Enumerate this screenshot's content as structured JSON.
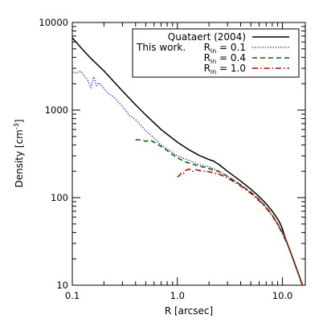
{
  "chart_data": {
    "type": "line",
    "title": "",
    "xlabel": "R [arcsec]",
    "ylabel_main": "Density [cm",
    "ylabel_exp": "-3",
    "ylabel_close": "]",
    "x_scale": "log",
    "y_scale": "log",
    "xlim": [
      0.1,
      16.5
    ],
    "ylim": [
      10,
      10000
    ],
    "x_tick_labels": [
      {
        "value": 0.1,
        "label": "0.1"
      },
      {
        "value": 1.0,
        "label": "1.0"
      },
      {
        "value": 10.0,
        "label": "10.0"
      }
    ],
    "y_tick_labels": [
      {
        "value": 10,
        "label": "10"
      },
      {
        "value": 100,
        "label": "100"
      },
      {
        "value": 1000,
        "label": "1000"
      },
      {
        "value": 10000,
        "label": "10000"
      }
    ],
    "grid": false,
    "legend": {
      "placement": "top-right",
      "group_label": "This work.",
      "entries": [
        {
          "label": "Quataert (2004)",
          "color": "#000000",
          "dash": "solid"
        },
        {
          "label_main": "R",
          "label_sub": "in",
          "label_tail": " = 0.1",
          "color": "#3333cc",
          "dash": "dotted"
        },
        {
          "label_main": "R",
          "label_sub": "in",
          "label_tail": " = 0.4",
          "color": "#006600",
          "dash": "dashed"
        },
        {
          "label_main": "R",
          "label_sub": "in",
          "label_tail": " = 1.0",
          "color": "#cc0000",
          "dash": "dashdot"
        }
      ]
    },
    "series": [
      {
        "key": "quataert",
        "color": "#000000",
        "dash": "solid",
        "x": [
          0.1,
          0.12,
          0.15,
          0.2,
          0.3,
          0.4,
          0.5,
          0.7,
          1.0,
          1.3,
          1.6,
          2.0,
          2.2,
          2.5,
          3.0,
          4.0,
          5.0,
          6.0,
          7.0,
          8.0,
          9.0,
          9.5,
          10.0,
          10.5,
          11.5,
          13.0,
          14.5,
          15.5
        ],
        "y": [
          6700,
          5200,
          3900,
          2800,
          1650,
          1150,
          880,
          600,
          430,
          350,
          305,
          272,
          262,
          238,
          200,
          155,
          125,
          103,
          85,
          70,
          57,
          51,
          44,
          36,
          27,
          18,
          12.5,
          10
        ]
      },
      {
        "key": "rin_0.1",
        "color": "#3333cc",
        "dash": "dotted",
        "x": [
          0.1,
          0.11,
          0.12,
          0.13,
          0.14,
          0.15,
          0.16,
          0.17,
          0.18,
          0.2,
          0.22,
          0.25,
          0.3,
          0.35,
          0.4,
          0.5,
          0.6,
          0.7,
          0.8,
          1.0,
          1.3,
          1.6,
          2.0,
          2.5,
          3.0,
          4.0,
          5.0,
          6.0,
          7.0,
          8.0,
          9.0,
          10.0,
          11.5,
          13.0,
          14.5,
          15.5
        ],
        "y": [
          2700,
          2650,
          2800,
          2450,
          2200,
          1800,
          2400,
          1900,
          2050,
          1750,
          1550,
          1400,
          1100,
          870,
          780,
          580,
          480,
          400,
          360,
          300,
          265,
          240,
          225,
          200,
          175,
          140,
          115,
          95,
          78,
          63,
          50,
          40,
          27,
          18,
          12.5,
          10
        ]
      },
      {
        "key": "rin_0.4",
        "color": "#006600",
        "dash": "dashed",
        "x": [
          0.4,
          0.45,
          0.5,
          0.55,
          0.6,
          0.7,
          0.8,
          0.9,
          1.0,
          1.2,
          1.5,
          2.0,
          2.5,
          3.0,
          4.0,
          5.0,
          6.0,
          7.0,
          8.0,
          9.0,
          10.0,
          11.5,
          13.0,
          14.5,
          15.5
        ],
        "y": [
          460,
          455,
          440,
          455,
          430,
          385,
          345,
          310,
          285,
          255,
          235,
          215,
          198,
          175,
          140,
          115,
          95,
          78,
          63,
          50,
          40,
          27,
          18,
          12.5,
          10
        ]
      },
      {
        "key": "rin_1.0",
        "color": "#cc0000",
        "dash": "dashdot",
        "x": [
          1.0,
          1.05,
          1.1,
          1.15,
          1.2,
          1.3,
          1.4,
          1.5,
          1.7,
          2.0,
          2.5,
          3.0,
          4.0,
          5.0,
          6.0,
          7.0,
          8.0,
          9.0,
          10.0,
          11.5,
          13.0,
          14.5,
          15.5
        ],
        "y": [
          172,
          180,
          195,
          190,
          205,
          212,
          200,
          208,
          202,
          198,
          185,
          168,
          136,
          112,
          92,
          76,
          62,
          49,
          39,
          27,
          18,
          12.5,
          10
        ]
      }
    ]
  }
}
